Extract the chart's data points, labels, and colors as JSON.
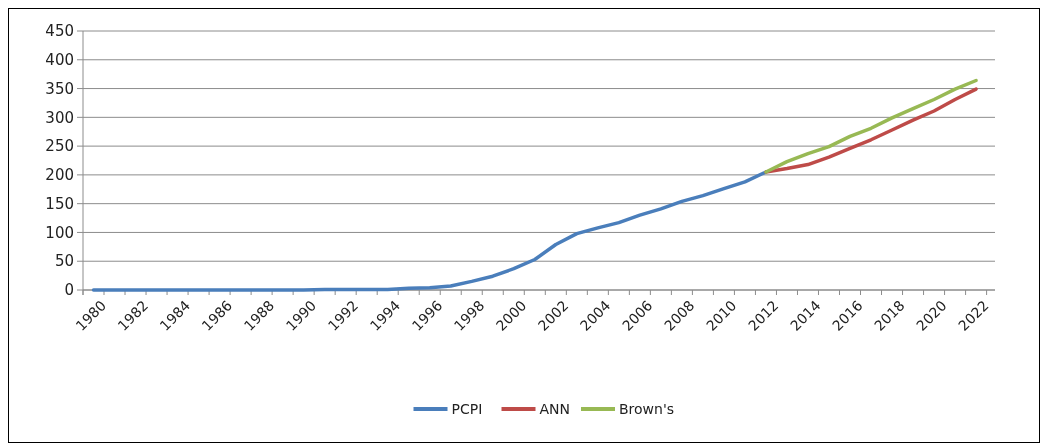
{
  "chart_data": {
    "type": "line",
    "categories": [
      "1980",
      null,
      "1982",
      null,
      "1984",
      null,
      "1986",
      null,
      "1988",
      null,
      "1990",
      null,
      "1992",
      null,
      "1994",
      null,
      "1996",
      null,
      "1998",
      null,
      "2000",
      null,
      "2002",
      null,
      "2004",
      null,
      "2006",
      null,
      "2008",
      null,
      "2010",
      null,
      "2012",
      null,
      "2014",
      null,
      "2016",
      null,
      "2018",
      null,
      "2020",
      null,
      "2022"
    ],
    "series": [
      {
        "name": "PCPI",
        "color": "#4a7ebb",
        "values": [
          0,
          0,
          0,
          0,
          0,
          0,
          0,
          0,
          0,
          0,
          0,
          1,
          1,
          1,
          1,
          3,
          4,
          7,
          15,
          24,
          37,
          53,
          79,
          98,
          108,
          117,
          130,
          141,
          154,
          164,
          176,
          188,
          205,
          null,
          null,
          null,
          null,
          null,
          null,
          null,
          null,
          null,
          null
        ]
      },
      {
        "name": "ANN",
        "color": "#be4b48",
        "values": [
          null,
          null,
          null,
          null,
          null,
          null,
          null,
          null,
          null,
          null,
          null,
          null,
          null,
          null,
          null,
          null,
          null,
          null,
          null,
          null,
          null,
          null,
          null,
          null,
          null,
          null,
          null,
          null,
          null,
          null,
          null,
          null,
          205,
          211,
          218,
          231,
          246,
          261,
          278,
          295,
          311,
          331,
          349
        ]
      },
      {
        "name": "Brown's",
        "color": "#98b954",
        "values": [
          null,
          null,
          null,
          null,
          null,
          null,
          null,
          null,
          null,
          null,
          null,
          null,
          null,
          null,
          null,
          null,
          null,
          null,
          null,
          null,
          null,
          null,
          null,
          null,
          null,
          null,
          null,
          null,
          null,
          null,
          null,
          null,
          205,
          223,
          237,
          249,
          267,
          281,
          299,
          315,
          331,
          349,
          364
        ]
      }
    ],
    "ylim": [
      0,
      450
    ],
    "yticks": [
      0,
      50,
      100,
      150,
      200,
      250,
      300,
      350,
      400,
      450
    ],
    "grid": "y",
    "legend": "bottom"
  }
}
